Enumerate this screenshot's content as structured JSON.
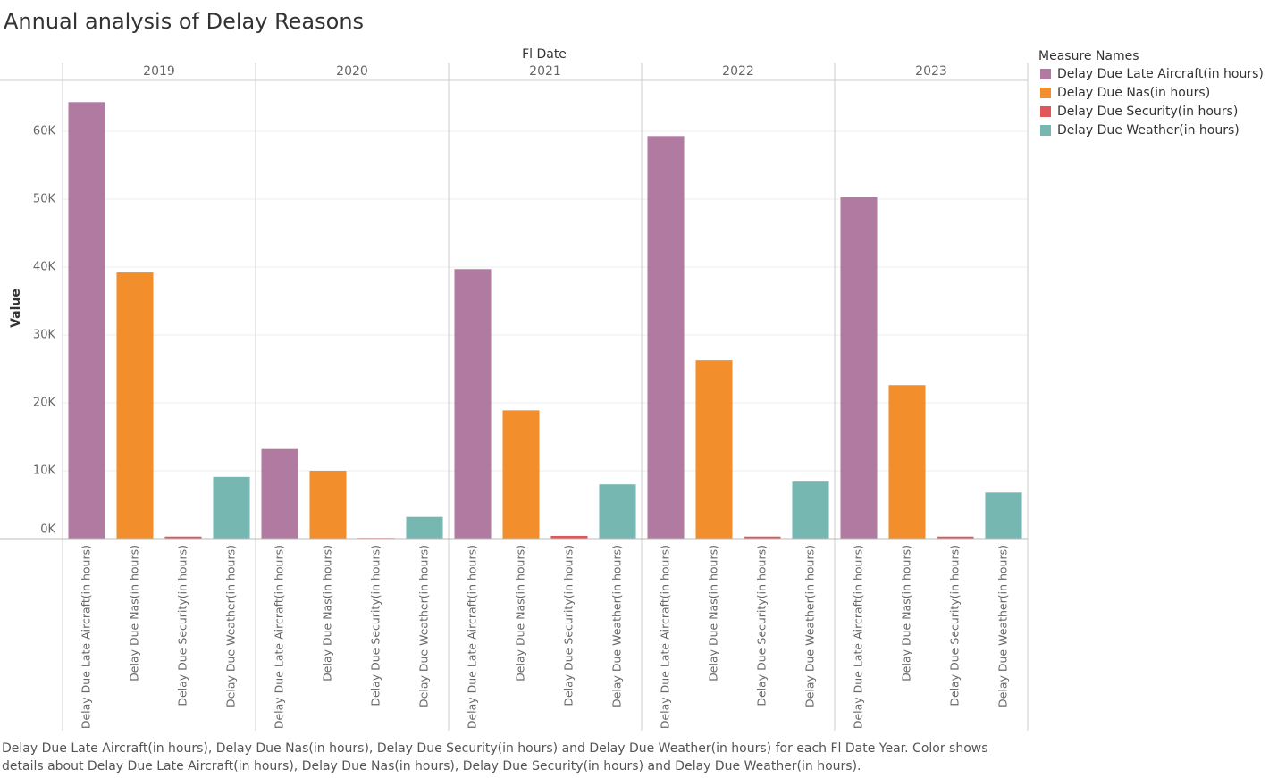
{
  "chart_data": {
    "type": "bar",
    "title": "Annual analysis of Delay Reasons",
    "column_header": "Fl Date",
    "y_label": "Value",
    "legend_title": "Measure Names",
    "legend": "right",
    "grid": true,
    "caption": "Delay Due Late Aircraft(in hours), Delay Due Nas(in hours), Delay Due Security(in hours) and Delay Due Weather(in hours) for each Fl Date Year.  Color shows details about Delay Due Late Aircraft(in hours), Delay Due Nas(in hours), Delay Due Security(in hours) and Delay Due Weather(in hours).",
    "categories": [
      "2019",
      "2020",
      "2021",
      "2022",
      "2023"
    ],
    "series": [
      {
        "name": "Delay Due Late Aircraft(in hours)",
        "color": "#b07aa1",
        "values": [
          64300,
          13200,
          39700,
          59300,
          50300
        ]
      },
      {
        "name": "Delay Due Nas(in hours)",
        "color": "#f28e2b",
        "values": [
          39200,
          10000,
          18900,
          26300,
          22600
        ]
      },
      {
        "name": "Delay Due Security(in hours)",
        "color": "#e15759",
        "values": [
          300,
          100,
          400,
          300,
          300
        ]
      },
      {
        "name": "Delay Due Weather(in hours)",
        "color": "#76b7b2",
        "values": [
          9100,
          3200,
          8000,
          8400,
          6800
        ]
      }
    ],
    "ylim": [
      0,
      67500
    ],
    "yticks": [
      {
        "value": 0,
        "label": "0K"
      },
      {
        "value": 10000,
        "label": "10K"
      },
      {
        "value": 20000,
        "label": "20K"
      },
      {
        "value": 30000,
        "label": "30K"
      },
      {
        "value": 40000,
        "label": "40K"
      },
      {
        "value": 50000,
        "label": "50K"
      },
      {
        "value": 60000,
        "label": "60K"
      }
    ]
  }
}
